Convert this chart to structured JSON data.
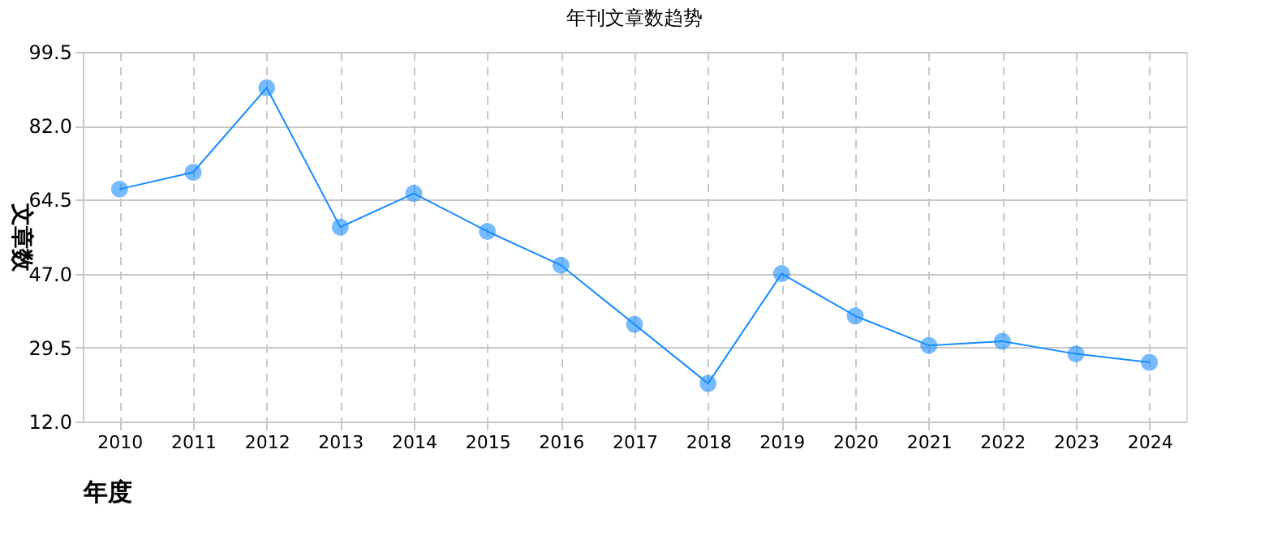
{
  "chart_data": {
    "type": "line",
    "title": "年刊文章数趋势",
    "xlabel": "年度",
    "ylabel": "文章数",
    "categories": [
      "2010",
      "2011",
      "2012",
      "2013",
      "2014",
      "2015",
      "2016",
      "2017",
      "2018",
      "2019",
      "2020",
      "2021",
      "2022",
      "2023",
      "2024"
    ],
    "series": [
      {
        "color": "#1a8cff",
        "values": [
          67,
          71,
          91,
          58,
          66,
          57,
          49,
          35,
          21,
          47,
          37,
          30,
          31,
          28,
          26
        ]
      }
    ],
    "ylim": [
      12.0,
      99.5
    ],
    "yticks": [
      {
        "value": 12,
        "label": "12.0"
      },
      {
        "value": 29.5,
        "label": "29.5"
      },
      {
        "value": 47,
        "label": "47.0"
      },
      {
        "value": 64.5,
        "label": "64.5"
      },
      {
        "value": 82,
        "label": "82.0"
      },
      {
        "value": 99.5,
        "label": "99.5"
      }
    ],
    "grid": true,
    "marker": "circle",
    "line_style": "solid"
  }
}
